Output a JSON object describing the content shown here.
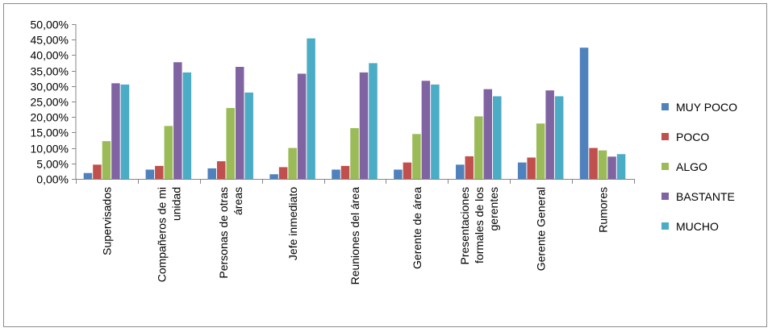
{
  "chart_data": {
    "type": "bar",
    "title": "",
    "xlabel": "",
    "ylabel": "",
    "ylim": [
      0,
      0.5
    ],
    "ytick_step": 0.05,
    "y_tick_labels": [
      "0,00%",
      "5,00%",
      "10,00%",
      "15,00%",
      "20,00%",
      "25,00%",
      "30,00%",
      "35,00%",
      "40,00%",
      "45,00%",
      "50,00%"
    ],
    "grid": false,
    "legend_position": "right",
    "categories": [
      [
        "Supervisados"
      ],
      [
        "Compañeros de mi",
        "unidad"
      ],
      [
        "Personas de otras",
        "áreas"
      ],
      [
        "Jefe inmediato"
      ],
      [
        "Reuniones del área"
      ],
      [
        "Gerente de área"
      ],
      [
        "Presentaciones",
        "formales de los",
        "gerentes"
      ],
      [
        "Gerente General"
      ],
      [
        "Rumores"
      ]
    ],
    "series": [
      {
        "name": "MUY POCO",
        "color": "#4f81bd",
        "values": [
          0.019,
          0.03,
          0.034,
          0.015,
          0.03,
          0.03,
          0.046,
          0.053,
          0.424
        ]
      },
      {
        "name": "POCO",
        "color": "#c0504d",
        "values": [
          0.046,
          0.042,
          0.057,
          0.038,
          0.042,
          0.053,
          0.073,
          0.069,
          0.1
        ]
      },
      {
        "name": "ALGO",
        "color": "#9bbb59",
        "values": [
          0.122,
          0.171,
          0.229,
          0.1,
          0.164,
          0.145,
          0.202,
          0.179,
          0.092
        ]
      },
      {
        "name": "BASTANTE",
        "color": "#8064a2",
        "values": [
          0.309,
          0.377,
          0.362,
          0.34,
          0.344,
          0.317,
          0.29,
          0.286,
          0.072
        ]
      },
      {
        "name": "MUCHO",
        "color": "#4bacc6",
        "values": [
          0.305,
          0.344,
          0.279,
          0.454,
          0.374,
          0.305,
          0.267,
          0.267,
          0.08
        ]
      }
    ]
  }
}
